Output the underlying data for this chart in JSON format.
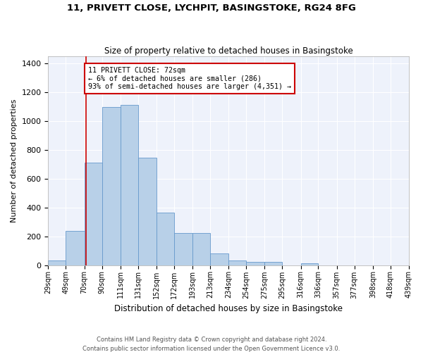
{
  "title": "11, PRIVETT CLOSE, LYCHPIT, BASINGSTOKE, RG24 8FG",
  "subtitle": "Size of property relative to detached houses in Basingstoke",
  "xlabel": "Distribution of detached houses by size in Basingstoke",
  "ylabel": "Number of detached properties",
  "bar_color": "#b8d0e8",
  "bar_edge_color": "#6699cc",
  "background_color": "#eef2fb",
  "grid_color": "#ffffff",
  "annotation_text": "11 PRIVETT CLOSE: 72sqm\n← 6% of detached houses are smaller (286)\n93% of semi-detached houses are larger (4,351) →",
  "annotation_box_color": "#cc0000",
  "property_line_x": 72,
  "categories": [
    "29sqm",
    "49sqm",
    "70sqm",
    "90sqm",
    "111sqm",
    "131sqm",
    "152sqm",
    "172sqm",
    "193sqm",
    "213sqm",
    "234sqm",
    "254sqm",
    "275sqm",
    "295sqm",
    "316sqm",
    "336sqm",
    "357sqm",
    "377sqm",
    "398sqm",
    "418sqm",
    "439sqm"
  ],
  "bar_lefts": [
    29,
    49,
    70,
    90,
    111,
    131,
    152,
    172,
    193,
    213,
    234,
    254,
    275,
    295,
    316,
    336,
    357,
    377,
    398,
    418
  ],
  "bar_widths": [
    20,
    21,
    20,
    21,
    20,
    21,
    20,
    21,
    20,
    21,
    20,
    21,
    20,
    21,
    20,
    21,
    20,
    21,
    20,
    21
  ],
  "bar_heights": [
    30,
    235,
    710,
    1095,
    1110,
    745,
    365,
    220,
    220,
    80,
    30,
    20,
    20,
    0,
    10,
    0,
    0,
    0,
    0,
    0
  ],
  "ylim": [
    0,
    1450
  ],
  "xlim": [
    29,
    439
  ],
  "tick_positions": [
    29,
    49,
    70,
    90,
    111,
    131,
    152,
    172,
    193,
    213,
    234,
    254,
    275,
    295,
    316,
    336,
    357,
    377,
    398,
    418,
    439
  ],
  "yticks": [
    0,
    200,
    400,
    600,
    800,
    1000,
    1200,
    1400
  ],
  "footer_line1": "Contains HM Land Registry data © Crown copyright and database right 2024.",
  "footer_line2": "Contains public sector information licensed under the Open Government Licence v3.0."
}
